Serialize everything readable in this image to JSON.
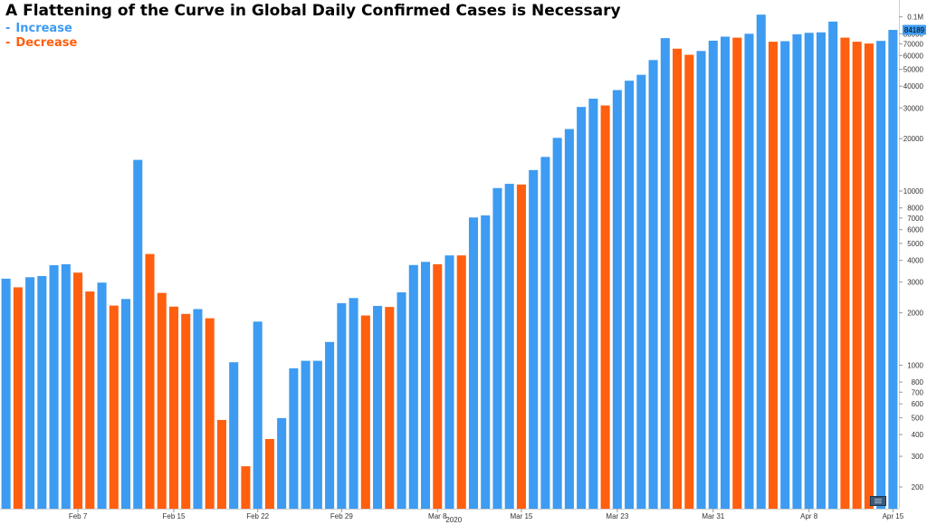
{
  "chart_data": {
    "type": "bar",
    "title": "A Flattening of the Curve in Global Daily Confirmed Cases is Necessary",
    "legend": [
      {
        "label": "Increase",
        "color": "#3d9bf2"
      },
      {
        "label": "Decrease",
        "color": "#ff5f0f"
      }
    ],
    "legend_position": "top-left",
    "x_axis_label": "2020",
    "x_tick_labels": [
      {
        "label": "Feb 7",
        "index": 6
      },
      {
        "label": "Feb 15",
        "index": 14
      },
      {
        "label": "Feb 22",
        "index": 21
      },
      {
        "label": "Feb 29",
        "index": 28
      },
      {
        "label": "Mar 8",
        "index": 36
      },
      {
        "label": "Mar 15",
        "index": 43
      },
      {
        "label": "Mar 23",
        "index": 51
      },
      {
        "label": "Mar 31",
        "index": 59
      },
      {
        "label": "Apr 8",
        "index": 67
      },
      {
        "label": "Apr 15",
        "index": 74
      }
    ],
    "y_scale": "log",
    "ylim": [
      150,
      125000
    ],
    "y_tick_labels": [
      "0.1M",
      "80000",
      "70000",
      "60000",
      "50000",
      "40000",
      "30000",
      "20000",
      "10000",
      "8000",
      "7000",
      "6000",
      "5000",
      "4000",
      "3000",
      "2000",
      "1000",
      "800",
      "700",
      "600",
      "500",
      "400",
      "300",
      "200"
    ],
    "y_tick_values": [
      100000,
      80000,
      70000,
      60000,
      50000,
      40000,
      30000,
      20000,
      10000,
      8000,
      7000,
      6000,
      5000,
      4000,
      3000,
      2000,
      1000,
      800,
      700,
      600,
      500,
      400,
      300,
      200
    ],
    "last_value_label": "84189",
    "last_value": 84189,
    "grid": false,
    "values": [
      3140,
      2800,
      3200,
      3250,
      3750,
      3800,
      3400,
      2650,
      2980,
      2200,
      2400,
      15100,
      4350,
      2600,
      2170,
      1970,
      2100,
      1860,
      485,
      1040,
      263,
      1780,
      377,
      497,
      960,
      1060,
      1060,
      1360,
      2270,
      2430,
      1930,
      2190,
      2160,
      2620,
      3760,
      3920,
      3800,
      4270,
      4270,
      7050,
      7250,
      10400,
      11000,
      10900,
      13200,
      15700,
      20200,
      22700,
      30400,
      33900,
      31000,
      38000,
      43000,
      46500,
      56500,
      75500,
      65700,
      60600,
      63700,
      73000,
      77000,
      76000,
      80000,
      103000,
      72000,
      72500,
      79500,
      81000,
      81500,
      94000,
      76000,
      72000,
      70300,
      72800,
      84189
    ],
    "directions": [
      "increase",
      "decrease",
      "increase",
      "increase",
      "increase",
      "increase",
      "decrease",
      "decrease",
      "increase",
      "decrease",
      "increase",
      "increase",
      "decrease",
      "decrease",
      "decrease",
      "decrease",
      "increase",
      "decrease",
      "decrease",
      "increase",
      "decrease",
      "increase",
      "decrease",
      "increase",
      "increase",
      "increase",
      "increase",
      "increase",
      "increase",
      "increase",
      "decrease",
      "increase",
      "decrease",
      "increase",
      "increase",
      "increase",
      "decrease",
      "increase",
      "decrease",
      "increase",
      "increase",
      "increase",
      "increase",
      "decrease",
      "increase",
      "increase",
      "increase",
      "increase",
      "increase",
      "increase",
      "decrease",
      "increase",
      "increase",
      "increase",
      "increase",
      "increase",
      "decrease",
      "decrease",
      "increase",
      "increase",
      "increase",
      "decrease",
      "increase",
      "increase",
      "decrease",
      "increase",
      "increase",
      "increase",
      "increase",
      "increase",
      "decrease",
      "decrease",
      "decrease",
      "increase",
      "increase"
    ]
  }
}
